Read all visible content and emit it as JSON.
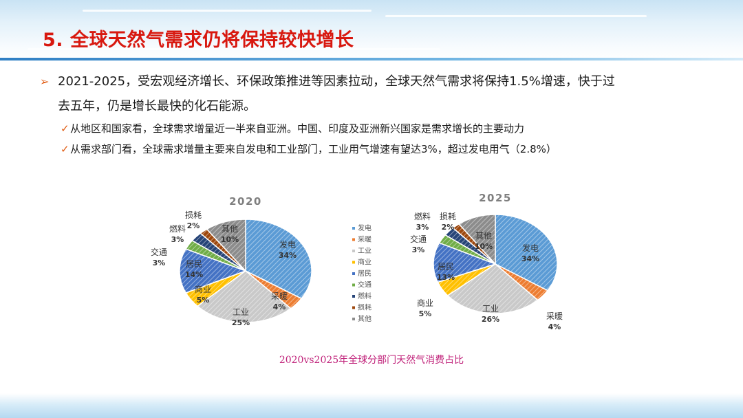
{
  "slide": {
    "title": "5. 全球天然气需求仍将保持较快增长",
    "bullet_line1": "2021-2025，受宏观经济增长、环保政策推进等因素拉动，全球天然气需求将保持1.5%增速，快于过",
    "bullet_line2": "去五年，仍是增长最快的化石能源。",
    "sub_items": [
      "从地区和国家看，全球需求增量近一半来自亚洲。中国、印度及亚洲新兴国家是需求增长的主要动力",
      "从需求部门看，全球需求增量主要来自发电和工业部门，工业用气增速有望达3%，超过发电用气（2.8%）"
    ],
    "bullet_marker": "➢",
    "check_marker": "✓",
    "caption": "2020vs2025年全球分部门天然气消费占比"
  },
  "colors": {
    "title": "#d8180f",
    "caption": "#c0227a",
    "categories": [
      "#5b9bd5",
      "#ed7d31",
      "#c9c9c9",
      "#ffc000",
      "#4472c4",
      "#70ad47",
      "#264478",
      "#9e480e",
      "#8c8c8c"
    ]
  },
  "chart_data": [
    {
      "type": "pie",
      "title": "2020",
      "categories": [
        "发电",
        "采暖",
        "工业",
        "商业",
        "居民",
        "交通",
        "燃料",
        "损耗",
        "其他"
      ],
      "values": [
        34,
        4,
        25,
        5,
        14,
        3,
        3,
        2,
        10
      ],
      "labels": [
        "34%",
        "4%",
        "25%",
        "5%",
        "14%",
        "3%",
        "3%",
        "2%",
        "10%"
      ],
      "legend": "center"
    },
    {
      "type": "pie",
      "title": "2025",
      "categories": [
        "发电",
        "采暖",
        "工业",
        "商业",
        "居民",
        "交通",
        "燃料",
        "损耗",
        "其他"
      ],
      "values": [
        34,
        4,
        26,
        5,
        13,
        3,
        3,
        2,
        10
      ],
      "labels": [
        "34%",
        "4%",
        "26%",
        "5%",
        "13%",
        "3%",
        "3%",
        "2%",
        "10%"
      ],
      "legend": "center"
    }
  ]
}
